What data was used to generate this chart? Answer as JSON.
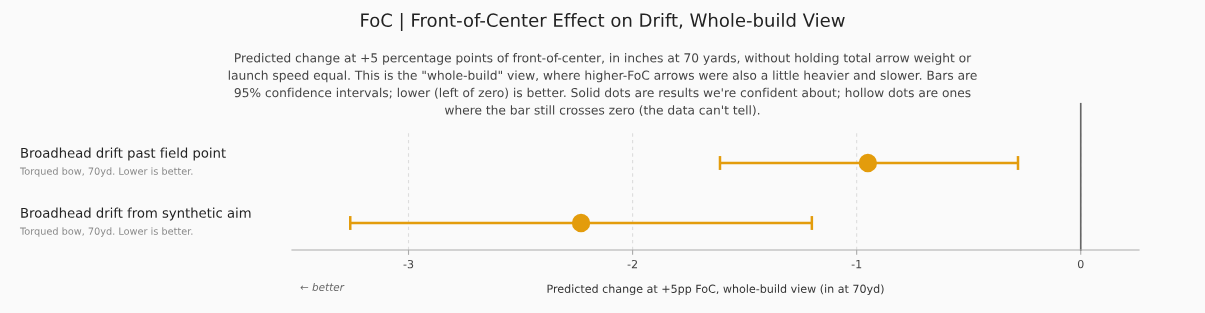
{
  "chart_data": {
    "type": "scatter",
    "orientation": "horizontal",
    "title": "FoC | Front-of-Center Effect on Drift, Whole-build View",
    "subtitle": "Predicted change at +5 percentage points of front-of-center, in inches at 70 yards, without holding total arrow weight or launch speed equal. This is the \"whole-build\" view, where higher-FoC arrows were also a little heavier and slower. Bars are 95% confidence intervals; lower (left of zero) is better. Solid dots are results we're confident about; hollow dots are ones where the bar still crosses zero (the data can't tell).",
    "categories": [
      "Broadhead drift past field point",
      "Broadhead drift from synthetic aim"
    ],
    "series": [
      {
        "color": "#e39c0c",
        "values": [
          -0.95,
          -2.23
        ],
        "errors": [
          [
            -1.61,
            -0.28
          ],
          [
            -3.26,
            -1.2
          ]
        ]
      }
    ],
    "xlim": [
      -3.52,
      0.26
    ],
    "xticks": [
      -3,
      -2,
      -1,
      0
    ],
    "xlabel": "Predicted change at +5pp FoC, whole-build view (in at 70yd)",
    "ref_lines": [
      {
        "axis": "x",
        "value": 0,
        "color": "#666666"
      }
    ],
    "grid": "x",
    "marker": "circle",
    "annotations": [
      "Torqued bow, 70yd. Lower is better.",
      "Torqued bow, 70yd. Lower is better.",
      "← better"
    ]
  }
}
